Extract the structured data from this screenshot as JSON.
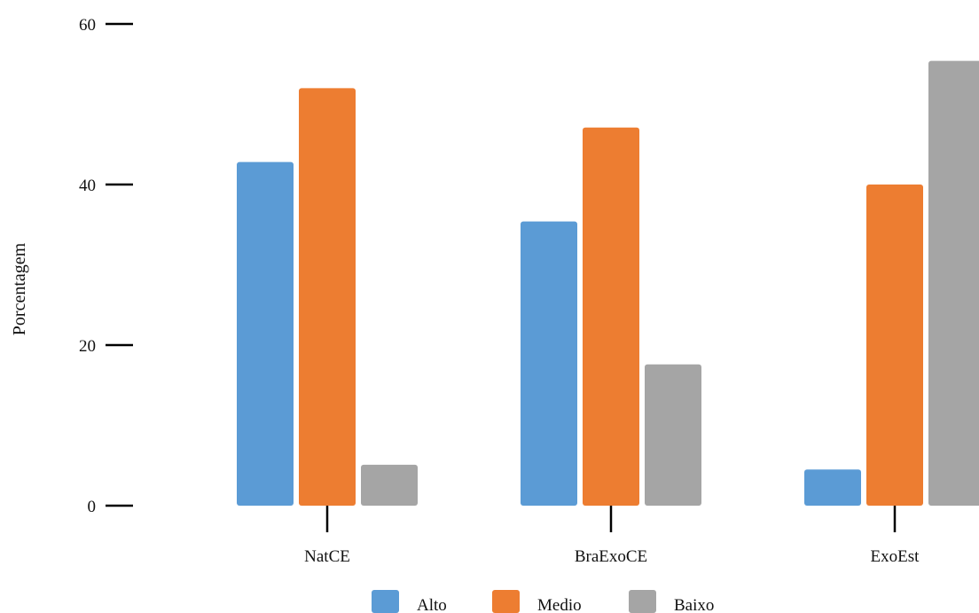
{
  "chart_data": {
    "type": "bar",
    "title": "",
    "xlabel": "",
    "ylabel": "Porcentagem",
    "categories": [
      "NatCE",
      "BraExoCE",
      "ExoEst"
    ],
    "series": [
      {
        "name": "Alto",
        "color": "#5b9bd5",
        "values": [
          42.8,
          35.4,
          4.5
        ]
      },
      {
        "name": "Medio",
        "color": "#ed7d31",
        "values": [
          52.0,
          47.1,
          40.0
        ]
      },
      {
        "name": "Baixo",
        "color": "#a5a5a5",
        "values": [
          5.1,
          17.6,
          55.4
        ]
      }
    ],
    "ylim": [
      0,
      60
    ],
    "yticks": [
      "0",
      "20",
      "40",
      "60"
    ],
    "grid": false,
    "legend_position": "bottom"
  }
}
